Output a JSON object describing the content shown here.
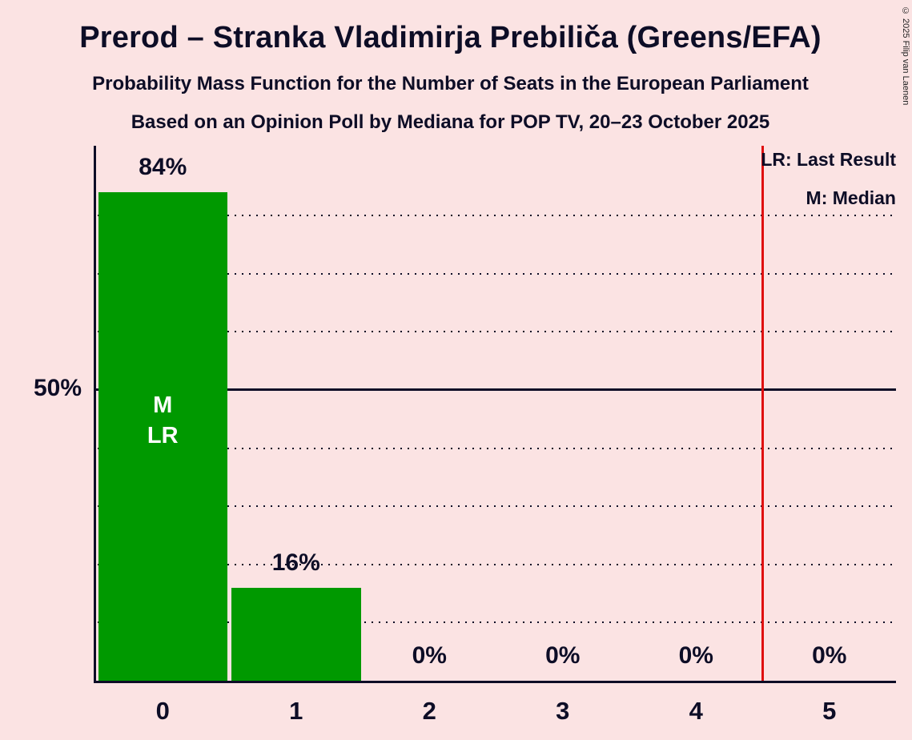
{
  "title": "Prerod – Stranka Vladimirja Prebiliča (Greens/EFA)",
  "subtitle1": "Probability Mass Function for the Number of Seats in the European Parliament",
  "subtitle2": "Based on an Opinion Poll by Mediana for POP TV, 20–23 October 2025",
  "copyright": "© 2025 Filip van Laenen",
  "legend": {
    "lr": "LR: Last Result",
    "m": "M: Median"
  },
  "colors": {
    "background": "#FBE3E3",
    "text": "#0D0D26",
    "bar": "#009900",
    "majority_line": "#DF0F0F",
    "inbar_text": "#FFFFFF"
  },
  "chart_data": {
    "type": "bar",
    "title": "Prerod – Stranka Vladimirja Prebiliča (Greens/EFA)",
    "categories": [
      "0",
      "1",
      "2",
      "3",
      "4",
      "5"
    ],
    "values": [
      84,
      16,
      0,
      0,
      0,
      0
    ],
    "value_labels": [
      "84%",
      "16%",
      "0%",
      "0%",
      "0%",
      "0%"
    ],
    "xlabel": "Number of Seats",
    "ylabel_50": "50%",
    "ylim": [
      0,
      92
    ],
    "gridlines_pct": [
      10,
      20,
      30,
      40,
      60,
      70,
      80
    ],
    "solid_line_pct": 50,
    "grid": "dotted",
    "legend_position": "top-right",
    "median_bar_index": 0,
    "median_label": "M",
    "last_result_label": "LR",
    "majority_line_x": 4.5
  }
}
